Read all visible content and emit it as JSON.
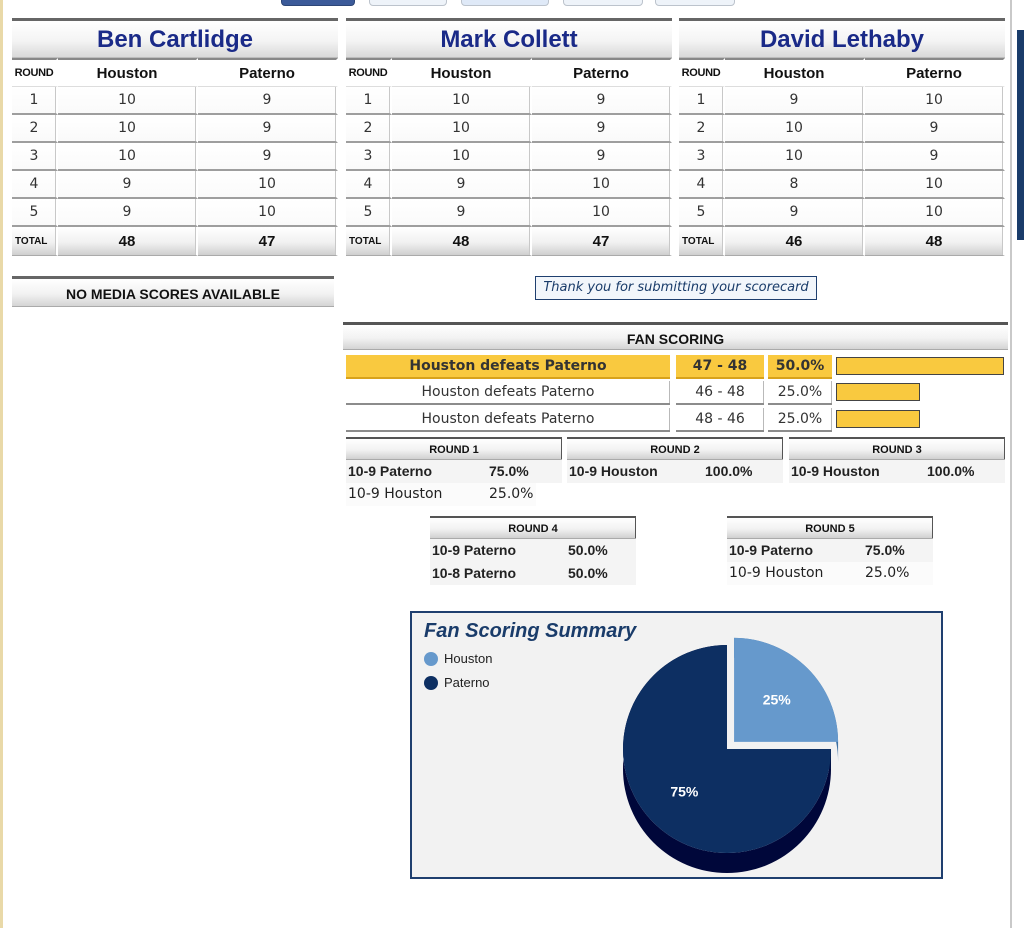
{
  "judges": [
    {
      "name": "Ben Cartlidge",
      "columns": [
        "ROUND",
        "Houston",
        "Paterno"
      ],
      "rows": [
        [
          "1",
          "10",
          "9"
        ],
        [
          "2",
          "10",
          "9"
        ],
        [
          "3",
          "10",
          "9"
        ],
        [
          "4",
          "9",
          "10"
        ],
        [
          "5",
          "9",
          "10"
        ]
      ],
      "total": [
        "TOTAL",
        "48",
        "47"
      ]
    },
    {
      "name": "Mark Collett",
      "columns": [
        "ROUND",
        "Houston",
        "Paterno"
      ],
      "rows": [
        [
          "1",
          "10",
          "9"
        ],
        [
          "2",
          "10",
          "9"
        ],
        [
          "3",
          "10",
          "9"
        ],
        [
          "4",
          "9",
          "10"
        ],
        [
          "5",
          "9",
          "10"
        ]
      ],
      "total": [
        "TOTAL",
        "48",
        "47"
      ]
    },
    {
      "name": "David Lethaby",
      "columns": [
        "ROUND",
        "Houston",
        "Paterno"
      ],
      "rows": [
        [
          "1",
          "9",
          "10"
        ],
        [
          "2",
          "10",
          "9"
        ],
        [
          "3",
          "10",
          "9"
        ],
        [
          "4",
          "8",
          "10"
        ],
        [
          "5",
          "9",
          "10"
        ]
      ],
      "total": [
        "TOTAL",
        "46",
        "48"
      ]
    }
  ],
  "media": {
    "text": "NO MEDIA SCORES AVAILABLE"
  },
  "thanks": {
    "text": "Thank you for submitting your scorecard"
  },
  "fan_scoring": {
    "header": "FAN SCORING",
    "highlight_color": "#f9c93f",
    "rows": [
      {
        "result": "Houston defeats Paterno",
        "score": "47 - 48",
        "pct": "50.0%",
        "fraction": 0.5,
        "highlight": true
      },
      {
        "result": "Houston defeats Paterno",
        "score": "46 - 48",
        "pct": "25.0%",
        "fraction": 0.25,
        "highlight": false
      },
      {
        "result": "Houston defeats Paterno",
        "score": "48 - 46",
        "pct": "25.0%",
        "fraction": 0.25,
        "highlight": false
      }
    ]
  },
  "rounds": [
    {
      "title": "ROUND 1",
      "lines": [
        {
          "label": "10-9 Paterno",
          "pct": "75.0%",
          "bold": true
        },
        {
          "label": "10-9 Houston",
          "pct": "25.0%",
          "bold": false
        }
      ]
    },
    {
      "title": "ROUND 2",
      "lines": [
        {
          "label": "10-9 Houston",
          "pct": "100.0%",
          "bold": true
        }
      ]
    },
    {
      "title": "ROUND 3",
      "lines": [
        {
          "label": "10-9 Houston",
          "pct": "100.0%",
          "bold": true
        }
      ]
    },
    {
      "title": "ROUND 4",
      "lines": [
        {
          "label": "10-9 Paterno",
          "pct": "50.0%",
          "bold": true
        },
        {
          "label": "10-8 Paterno",
          "pct": "50.0%",
          "bold": true
        }
      ]
    },
    {
      "title": "ROUND 5",
      "lines": [
        {
          "label": "10-9 Paterno",
          "pct": "75.0%",
          "bold": true
        },
        {
          "label": "10-9 Houston",
          "pct": "25.0%",
          "bold": false
        }
      ]
    }
  ],
  "summary": {
    "title": "Fan Scoring Summary",
    "chart_data": {
      "type": "pie",
      "categories": [
        "Houston",
        "Paterno"
      ],
      "values": [
        25,
        75
      ],
      "labels": [
        "25%",
        "75%"
      ],
      "colors": [
        "#6699cc",
        "#0d2f62"
      ],
      "legend": "top-left"
    }
  }
}
